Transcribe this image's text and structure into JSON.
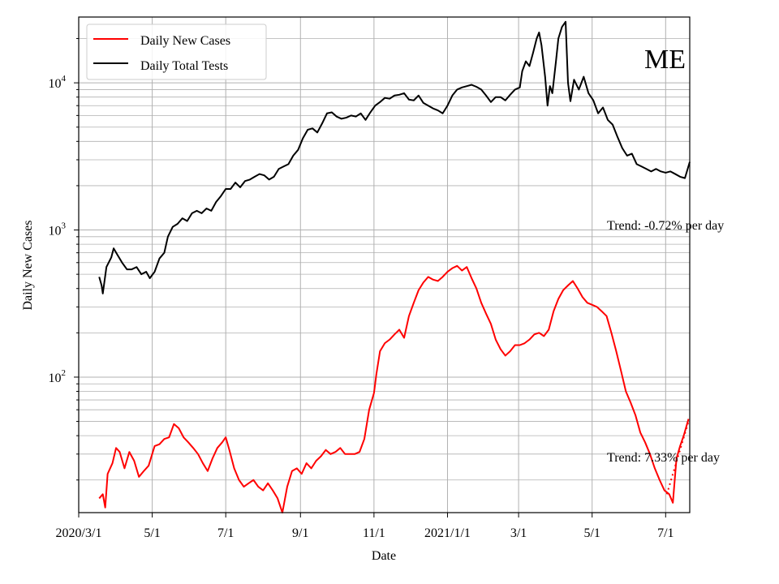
{
  "chart_data": {
    "type": "line",
    "annotation_title": "ME",
    "xlabel": "Date",
    "ylabel": "Daily New Cases",
    "yscale": "log",
    "ylim": [
      12,
      28000
    ],
    "xlim": [
      "2020-03-01",
      "2021-07-21"
    ],
    "grid": true,
    "legend_position": "top-left",
    "x_ticks": [
      {
        "date": "2020-03-01",
        "label": "2020/3/1"
      },
      {
        "date": "2020-05-01",
        "label": "5/1"
      },
      {
        "date": "2020-07-01",
        "label": "7/1"
      },
      {
        "date": "2020-09-01",
        "label": "9/1"
      },
      {
        "date": "2020-11-01",
        "label": "11/1"
      },
      {
        "date": "2021-01-01",
        "label": "2021/1/1"
      },
      {
        "date": "2021-03-01",
        "label": "3/1"
      },
      {
        "date": "2021-05-01",
        "label": "5/1"
      },
      {
        "date": "2021-07-01",
        "label": "7/1"
      }
    ],
    "y_ticks": [
      {
        "value": 100,
        "base": "10",
        "exp": "2"
      },
      {
        "value": 1000,
        "base": "10",
        "exp": "3"
      },
      {
        "value": 10000,
        "base": "10",
        "exp": "4"
      }
    ],
    "series": [
      {
        "name": "Daily New Cases",
        "color": "#ff0000",
        "points": [
          [
            "2020-03-18",
            15
          ],
          [
            "2020-03-21",
            16
          ],
          [
            "2020-03-23",
            13
          ],
          [
            "2020-03-25",
            22
          ],
          [
            "2020-03-29",
            26
          ],
          [
            "2020-04-01",
            33
          ],
          [
            "2020-04-04",
            31
          ],
          [
            "2020-04-08",
            24
          ],
          [
            "2020-04-12",
            31
          ],
          [
            "2020-04-16",
            27
          ],
          [
            "2020-04-20",
            21
          ],
          [
            "2020-04-24",
            23
          ],
          [
            "2020-04-28",
            25
          ],
          [
            "2020-05-03",
            34
          ],
          [
            "2020-05-07",
            35
          ],
          [
            "2020-05-11",
            38
          ],
          [
            "2020-05-15",
            39
          ],
          [
            "2020-05-19",
            48
          ],
          [
            "2020-05-23",
            45
          ],
          [
            "2020-05-27",
            39
          ],
          [
            "2020-05-31",
            36
          ],
          [
            "2020-06-04",
            33
          ],
          [
            "2020-06-08",
            30
          ],
          [
            "2020-06-12",
            26
          ],
          [
            "2020-06-16",
            23
          ],
          [
            "2020-06-20",
            28
          ],
          [
            "2020-06-24",
            33
          ],
          [
            "2020-06-28",
            36
          ],
          [
            "2020-07-01",
            39
          ],
          [
            "2020-07-04",
            32
          ],
          [
            "2020-07-08",
            24
          ],
          [
            "2020-07-12",
            20
          ],
          [
            "2020-07-16",
            18
          ],
          [
            "2020-07-20",
            19
          ],
          [
            "2020-07-24",
            20
          ],
          [
            "2020-07-28",
            18
          ],
          [
            "2020-08-01",
            17
          ],
          [
            "2020-08-05",
            19
          ],
          [
            "2020-08-09",
            17
          ],
          [
            "2020-08-13",
            15
          ],
          [
            "2020-08-17",
            12
          ],
          [
            "2020-08-21",
            18
          ],
          [
            "2020-08-25",
            23
          ],
          [
            "2020-08-29",
            24
          ],
          [
            "2020-09-02",
            22
          ],
          [
            "2020-09-06",
            26
          ],
          [
            "2020-09-10",
            24
          ],
          [
            "2020-09-14",
            27
          ],
          [
            "2020-09-18",
            29
          ],
          [
            "2020-09-22",
            32
          ],
          [
            "2020-09-26",
            30
          ],
          [
            "2020-09-30",
            31
          ],
          [
            "2020-10-04",
            33
          ],
          [
            "2020-10-08",
            30
          ],
          [
            "2020-10-12",
            30
          ],
          [
            "2020-10-16",
            30
          ],
          [
            "2020-10-20",
            31
          ],
          [
            "2020-10-24",
            38
          ],
          [
            "2020-10-28",
            60
          ],
          [
            "2020-11-01",
            78
          ],
          [
            "2020-11-03",
            105
          ],
          [
            "2020-11-06",
            150
          ],
          [
            "2020-11-10",
            170
          ],
          [
            "2020-11-14",
            180
          ],
          [
            "2020-11-18",
            195
          ],
          [
            "2020-11-22",
            210
          ],
          [
            "2020-11-26",
            185
          ],
          [
            "2020-11-30",
            260
          ],
          [
            "2020-12-04",
            320
          ],
          [
            "2020-12-08",
            390
          ],
          [
            "2020-12-12",
            440
          ],
          [
            "2020-12-16",
            480
          ],
          [
            "2020-12-20",
            460
          ],
          [
            "2020-12-24",
            450
          ],
          [
            "2020-12-28",
            480
          ],
          [
            "2021-01-01",
            520
          ],
          [
            "2021-01-05",
            550
          ],
          [
            "2021-01-09",
            570
          ],
          [
            "2021-01-13",
            530
          ],
          [
            "2021-01-17",
            560
          ],
          [
            "2021-01-21",
            470
          ],
          [
            "2021-01-25",
            400
          ],
          [
            "2021-01-29",
            320
          ],
          [
            "2021-02-02",
            270
          ],
          [
            "2021-02-06",
            230
          ],
          [
            "2021-02-10",
            180
          ],
          [
            "2021-02-14",
            155
          ],
          [
            "2021-02-18",
            140
          ],
          [
            "2021-02-22",
            150
          ],
          [
            "2021-02-26",
            165
          ],
          [
            "2021-03-02",
            165
          ],
          [
            "2021-03-06",
            170
          ],
          [
            "2021-03-10",
            180
          ],
          [
            "2021-03-14",
            195
          ],
          [
            "2021-03-18",
            200
          ],
          [
            "2021-03-22",
            190
          ],
          [
            "2021-03-26",
            210
          ],
          [
            "2021-03-30",
            280
          ],
          [
            "2021-04-03",
            340
          ],
          [
            "2021-04-07",
            390
          ],
          [
            "2021-04-11",
            420
          ],
          [
            "2021-04-15",
            450
          ],
          [
            "2021-04-19",
            400
          ],
          [
            "2021-04-23",
            350
          ],
          [
            "2021-04-27",
            320
          ],
          [
            "2021-05-01",
            310
          ],
          [
            "2021-05-05",
            300
          ],
          [
            "2021-05-09",
            280
          ],
          [
            "2021-05-13",
            260
          ],
          [
            "2021-05-17",
            200
          ],
          [
            "2021-05-21",
            150
          ],
          [
            "2021-05-25",
            110
          ],
          [
            "2021-05-29",
            80
          ],
          [
            "2021-06-02",
            67
          ],
          [
            "2021-06-06",
            55
          ],
          [
            "2021-06-10",
            42
          ],
          [
            "2021-06-14",
            36
          ],
          [
            "2021-06-18",
            30
          ],
          [
            "2021-06-22",
            24
          ],
          [
            "2021-06-26",
            20
          ],
          [
            "2021-06-30",
            17
          ],
          [
            "2021-07-04",
            16
          ],
          [
            "2021-07-07",
            14
          ],
          [
            "2021-07-10",
            28
          ],
          [
            "2021-07-13",
            34
          ],
          [
            "2021-07-16",
            40
          ],
          [
            "2021-07-20",
            52
          ]
        ]
      },
      {
        "name": "Daily Total Tests",
        "color": "#000000",
        "points": [
          [
            "2020-03-18",
            480
          ],
          [
            "2020-03-20",
            420
          ],
          [
            "2020-03-21",
            370
          ],
          [
            "2020-03-24",
            560
          ],
          [
            "2020-03-28",
            650
          ],
          [
            "2020-03-30",
            750
          ],
          [
            "2020-04-02",
            680
          ],
          [
            "2020-04-06",
            600
          ],
          [
            "2020-04-10",
            540
          ],
          [
            "2020-04-14",
            540
          ],
          [
            "2020-04-18",
            560
          ],
          [
            "2020-04-22",
            500
          ],
          [
            "2020-04-26",
            520
          ],
          [
            "2020-04-29",
            470
          ],
          [
            "2020-05-03",
            520
          ],
          [
            "2020-05-07",
            640
          ],
          [
            "2020-05-11",
            700
          ],
          [
            "2020-05-14",
            900
          ],
          [
            "2020-05-18",
            1050
          ],
          [
            "2020-05-22",
            1100
          ],
          [
            "2020-05-26",
            1200
          ],
          [
            "2020-05-30",
            1150
          ],
          [
            "2020-06-03",
            1300
          ],
          [
            "2020-06-07",
            1350
          ],
          [
            "2020-06-11",
            1300
          ],
          [
            "2020-06-15",
            1400
          ],
          [
            "2020-06-19",
            1350
          ],
          [
            "2020-06-23",
            1550
          ],
          [
            "2020-06-27",
            1700
          ],
          [
            "2020-07-01",
            1900
          ],
          [
            "2020-07-05",
            1900
          ],
          [
            "2020-07-09",
            2100
          ],
          [
            "2020-07-13",
            1950
          ],
          [
            "2020-07-17",
            2150
          ],
          [
            "2020-07-21",
            2200
          ],
          [
            "2020-07-25",
            2300
          ],
          [
            "2020-07-29",
            2400
          ],
          [
            "2020-08-02",
            2350
          ],
          [
            "2020-08-06",
            2200
          ],
          [
            "2020-08-10",
            2300
          ],
          [
            "2020-08-14",
            2600
          ],
          [
            "2020-08-18",
            2700
          ],
          [
            "2020-08-22",
            2800
          ],
          [
            "2020-08-26",
            3200
          ],
          [
            "2020-08-30",
            3500
          ],
          [
            "2020-09-03",
            4200
          ],
          [
            "2020-09-07",
            4800
          ],
          [
            "2020-09-11",
            4900
          ],
          [
            "2020-09-15",
            4600
          ],
          [
            "2020-09-19",
            5300
          ],
          [
            "2020-09-23",
            6200
          ],
          [
            "2020-09-27",
            6300
          ],
          [
            "2020-10-01",
            5900
          ],
          [
            "2020-10-05",
            5700
          ],
          [
            "2020-10-09",
            5800
          ],
          [
            "2020-10-13",
            6000
          ],
          [
            "2020-10-17",
            5900
          ],
          [
            "2020-10-21",
            6200
          ],
          [
            "2020-10-25",
            5600
          ],
          [
            "2020-10-29",
            6300
          ],
          [
            "2020-11-02",
            7000
          ],
          [
            "2020-11-06",
            7400
          ],
          [
            "2020-11-10",
            7900
          ],
          [
            "2020-11-14",
            7800
          ],
          [
            "2020-11-18",
            8200
          ],
          [
            "2020-11-22",
            8300
          ],
          [
            "2020-11-26",
            8500
          ],
          [
            "2020-11-30",
            7700
          ],
          [
            "2020-12-04",
            7600
          ],
          [
            "2020-12-08",
            8200
          ],
          [
            "2020-12-12",
            7300
          ],
          [
            "2020-12-16",
            7000
          ],
          [
            "2020-12-20",
            6700
          ],
          [
            "2020-12-24",
            6500
          ],
          [
            "2020-12-28",
            6200
          ],
          [
            "2021-01-01",
            7000
          ],
          [
            "2021-01-05",
            8200
          ],
          [
            "2021-01-09",
            9000
          ],
          [
            "2021-01-13",
            9300
          ],
          [
            "2021-01-17",
            9500
          ],
          [
            "2021-01-21",
            9700
          ],
          [
            "2021-01-25",
            9400
          ],
          [
            "2021-01-29",
            9000
          ],
          [
            "2021-02-02",
            8200
          ],
          [
            "2021-02-06",
            7400
          ],
          [
            "2021-02-10",
            8000
          ],
          [
            "2021-02-14",
            8000
          ],
          [
            "2021-02-18",
            7600
          ],
          [
            "2021-02-22",
            8300
          ],
          [
            "2021-02-26",
            9000
          ],
          [
            "2021-03-02",
            9300
          ],
          [
            "2021-03-04",
            12000
          ],
          [
            "2021-03-07",
            14000
          ],
          [
            "2021-03-10",
            13000
          ],
          [
            "2021-03-13",
            16000
          ],
          [
            "2021-03-16",
            20000
          ],
          [
            "2021-03-18",
            22000
          ],
          [
            "2021-03-20",
            18000
          ],
          [
            "2021-03-23",
            11000
          ],
          [
            "2021-03-25",
            7000
          ],
          [
            "2021-03-27",
            9500
          ],
          [
            "2021-03-29",
            8500
          ],
          [
            "2021-04-01",
            14000
          ],
          [
            "2021-04-03",
            20000
          ],
          [
            "2021-04-06",
            24000
          ],
          [
            "2021-04-09",
            26000
          ],
          [
            "2021-04-11",
            10000
          ],
          [
            "2021-04-13",
            7500
          ],
          [
            "2021-04-16",
            10500
          ],
          [
            "2021-04-20",
            9000
          ],
          [
            "2021-04-24",
            11000
          ],
          [
            "2021-04-28",
            8500
          ],
          [
            "2021-05-02",
            7600
          ],
          [
            "2021-05-06",
            6200
          ],
          [
            "2021-05-10",
            6800
          ],
          [
            "2021-05-14",
            5600
          ],
          [
            "2021-05-18",
            5200
          ],
          [
            "2021-05-22",
            4300
          ],
          [
            "2021-05-26",
            3600
          ],
          [
            "2021-05-30",
            3200
          ],
          [
            "2021-06-03",
            3300
          ],
          [
            "2021-06-07",
            2800
          ],
          [
            "2021-06-11",
            2700
          ],
          [
            "2021-06-15",
            2600
          ],
          [
            "2021-06-19",
            2500
          ],
          [
            "2021-06-23",
            2600
          ],
          [
            "2021-06-27",
            2500
          ],
          [
            "2021-07-01",
            2450
          ],
          [
            "2021-07-05",
            2500
          ],
          [
            "2021-07-09",
            2400
          ],
          [
            "2021-07-13",
            2300
          ],
          [
            "2021-07-17",
            2250
          ],
          [
            "2021-07-21",
            2900
          ]
        ]
      }
    ],
    "trend_annotations": [
      {
        "text": "Trend: -0.72% per day",
        "series": "Daily Total Tests"
      },
      {
        "text": "Trend: 7.33% per day",
        "series": "Daily New Cases"
      }
    ],
    "trend_line": {
      "series": "Daily New Cases",
      "color": "#ff0000",
      "points": [
        [
          "2021-07-02",
          16
        ],
        [
          "2021-07-20",
          50
        ]
      ]
    }
  }
}
